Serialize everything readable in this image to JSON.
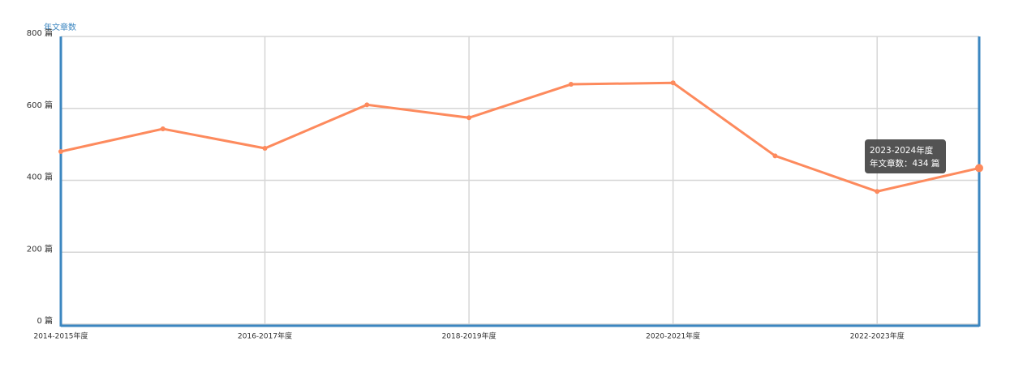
{
  "chart_data": {
    "type": "line",
    "y_axis_name": "年文章数",
    "categories": [
      "2014-2015年度",
      null,
      "2016-2017年度",
      null,
      "2018-2019年度",
      null,
      "2020-2021年度",
      null,
      "2022-2023年度",
      null
    ],
    "series": [
      {
        "name": "年文章数",
        "color": "#fd8a5d",
        "values": [
          480,
          543,
          489,
          610,
          574,
          667,
          671,
          468,
          369,
          434
        ]
      }
    ],
    "ylim": [
      0,
      800
    ],
    "yticks": [
      {
        "value": 0,
        "label": "0 篇"
      },
      {
        "value": 200,
        "label": "200 篇"
      },
      {
        "value": 400,
        "label": "400 篇"
      },
      {
        "value": 600,
        "label": "600 篇"
      },
      {
        "value": 800,
        "label": "800 篇"
      }
    ],
    "grid": true,
    "axis_color": "#3b86c0",
    "tooltip": {
      "title": "2023-2024年度",
      "text": "年文章数：434 篇"
    }
  }
}
